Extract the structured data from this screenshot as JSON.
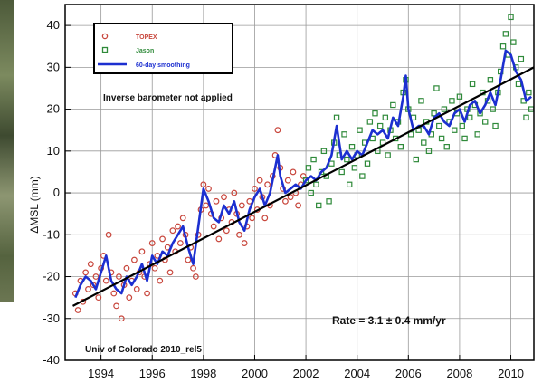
{
  "chart_data": {
    "type": "scatter",
    "title": "",
    "xlabel": "",
    "ylabel": "ΔMSL (mm)",
    "xlim": [
      1992.6,
      2010.9
    ],
    "ylim": [
      -40,
      45
    ],
    "x_ticks": [
      1994,
      1996,
      1998,
      2000,
      2002,
      2004,
      2006,
      2008,
      2010
    ],
    "y_ticks": [
      -40,
      -30,
      -20,
      -10,
      0,
      10,
      20,
      30,
      40
    ],
    "grid": true,
    "legend_position": "top-left",
    "legend": [
      {
        "label": "TOPEX",
        "marker": "circle",
        "color": "#c8463c"
      },
      {
        "label": "Jason",
        "marker": "square",
        "color": "#2f8a3a"
      },
      {
        "label": "60-day smoothing",
        "marker": "line",
        "color": "#1c2fd0"
      }
    ],
    "annotations": {
      "note": "Inverse barometer not applied",
      "rate": "Rate = 3.1 ± 0.4 mm/yr",
      "source": "Univ of Colorado 2010_rel5"
    },
    "trend": {
      "x": [
        1992.9,
        2010.9
      ],
      "y": [
        -27,
        30
      ],
      "color": "#000000"
    },
    "series": [
      {
        "name": "TOPEX",
        "marker": "circle",
        "color": "#c8463c",
        "points": [
          [
            1993.0,
            -24
          ],
          [
            1993.1,
            -28
          ],
          [
            1993.2,
            -21
          ],
          [
            1993.3,
            -26
          ],
          [
            1993.4,
            -19
          ],
          [
            1993.5,
            -23
          ],
          [
            1993.6,
            -17
          ],
          [
            1993.7,
            -22
          ],
          [
            1993.8,
            -20
          ],
          [
            1993.9,
            -25
          ],
          [
            1994.0,
            -18
          ],
          [
            1994.1,
            -15
          ],
          [
            1994.2,
            -21
          ],
          [
            1994.3,
            -10
          ],
          [
            1994.4,
            -19
          ],
          [
            1994.5,
            -24
          ],
          [
            1994.6,
            -27
          ],
          [
            1994.7,
            -20
          ],
          [
            1994.8,
            -30
          ],
          [
            1994.9,
            -22
          ],
          [
            1995.0,
            -18
          ],
          [
            1995.1,
            -25
          ],
          [
            1995.2,
            -21
          ],
          [
            1995.3,
            -16
          ],
          [
            1995.4,
            -23
          ],
          [
            1995.5,
            -19
          ],
          [
            1995.6,
            -14
          ],
          [
            1995.7,
            -20
          ],
          [
            1995.8,
            -24
          ],
          [
            1995.9,
            -17
          ],
          [
            1996.0,
            -12
          ],
          [
            1996.1,
            -18
          ],
          [
            1996.2,
            -15
          ],
          [
            1996.3,
            -21
          ],
          [
            1996.4,
            -11
          ],
          [
            1996.5,
            -16
          ],
          [
            1996.6,
            -13
          ],
          [
            1996.7,
            -19
          ],
          [
            1996.8,
            -9
          ],
          [
            1996.9,
            -14
          ],
          [
            1997.0,
            -8
          ],
          [
            1997.1,
            -12
          ],
          [
            1997.2,
            -6
          ],
          [
            1997.3,
            -10
          ],
          [
            1997.4,
            -16
          ],
          [
            1997.5,
            -13
          ],
          [
            1997.6,
            -18
          ],
          [
            1997.7,
            -20
          ],
          [
            1997.8,
            -10
          ],
          [
            1997.9,
            -4
          ],
          [
            1998.0,
            2
          ],
          [
            1998.1,
            -3
          ],
          [
            1998.2,
            1
          ],
          [
            1998.3,
            -5
          ],
          [
            1998.4,
            -8
          ],
          [
            1998.5,
            -2
          ],
          [
            1998.6,
            -11
          ],
          [
            1998.7,
            -6
          ],
          [
            1998.8,
            -1
          ],
          [
            1998.9,
            -9
          ],
          [
            1999.0,
            -4
          ],
          [
            1999.1,
            -7
          ],
          [
            1999.2,
            0
          ],
          [
            1999.3,
            -5
          ],
          [
            1999.4,
            -10
          ],
          [
            1999.5,
            -3
          ],
          [
            1999.6,
            -12
          ],
          [
            1999.7,
            -8
          ],
          [
            1999.8,
            -2
          ],
          [
            1999.9,
            -6
          ],
          [
            2000.0,
            1
          ],
          [
            2000.1,
            -4
          ],
          [
            2000.2,
            3
          ],
          [
            2000.3,
            -1
          ],
          [
            2000.4,
            -6
          ],
          [
            2000.5,
            2
          ],
          [
            2000.6,
            -3
          ],
          [
            2000.7,
            4
          ],
          [
            2000.8,
            9
          ],
          [
            2000.9,
            15
          ],
          [
            2001.0,
            6
          ],
          [
            2001.1,
            1
          ],
          [
            2001.2,
            -2
          ],
          [
            2001.3,
            3
          ],
          [
            2001.4,
            -1
          ],
          [
            2001.5,
            5
          ],
          [
            2001.6,
            0
          ],
          [
            2001.7,
            -3
          ],
          [
            2001.8,
            2
          ],
          [
            2001.9,
            4
          ]
        ]
      },
      {
        "name": "Jason",
        "marker": "square",
        "color": "#2f8a3a",
        "points": [
          [
            2002.0,
            3
          ],
          [
            2002.1,
            6
          ],
          [
            2002.2,
            0
          ],
          [
            2002.3,
            8
          ],
          [
            2002.4,
            2
          ],
          [
            2002.5,
            -3
          ],
          [
            2002.6,
            5
          ],
          [
            2002.7,
            10
          ],
          [
            2002.8,
            4
          ],
          [
            2002.9,
            -2
          ],
          [
            2003.0,
            7
          ],
          [
            2003.1,
            12
          ],
          [
            2003.2,
            18
          ],
          [
            2003.3,
            9
          ],
          [
            2003.4,
            5
          ],
          [
            2003.5,
            14
          ],
          [
            2003.6,
            8
          ],
          [
            2003.7,
            2
          ],
          [
            2003.8,
            11
          ],
          [
            2003.9,
            6
          ],
          [
            2004.0,
            9
          ],
          [
            2004.1,
            15
          ],
          [
            2004.2,
            4
          ],
          [
            2004.3,
            12
          ],
          [
            2004.4,
            7
          ],
          [
            2004.5,
            17
          ],
          [
            2004.6,
            13
          ],
          [
            2004.7,
            19
          ],
          [
            2004.8,
            10
          ],
          [
            2004.9,
            16
          ],
          [
            2005.0,
            12
          ],
          [
            2005.1,
            18
          ],
          [
            2005.2,
            9
          ],
          [
            2005.3,
            15
          ],
          [
            2005.4,
            21
          ],
          [
            2005.5,
            13
          ],
          [
            2005.6,
            17
          ],
          [
            2005.7,
            11
          ],
          [
            2005.8,
            24
          ],
          [
            2005.9,
            27
          ],
          [
            2006.0,
            20
          ],
          [
            2006.1,
            14
          ],
          [
            2006.2,
            18
          ],
          [
            2006.3,
            8
          ],
          [
            2006.4,
            15
          ],
          [
            2006.5,
            22
          ],
          [
            2006.6,
            12
          ],
          [
            2006.7,
            17
          ],
          [
            2006.8,
            10
          ],
          [
            2006.9,
            14
          ],
          [
            2007.0,
            19
          ],
          [
            2007.1,
            25
          ],
          [
            2007.2,
            16
          ],
          [
            2007.3,
            13
          ],
          [
            2007.4,
            20
          ],
          [
            2007.5,
            11
          ],
          [
            2007.6,
            17
          ],
          [
            2007.7,
            22
          ],
          [
            2007.8,
            15
          ],
          [
            2007.9,
            19
          ],
          [
            2008.0,
            23
          ],
          [
            2008.1,
            16
          ],
          [
            2008.2,
            13
          ],
          [
            2008.3,
            20
          ],
          [
            2008.4,
            18
          ],
          [
            2008.5,
            26
          ],
          [
            2008.6,
            21
          ],
          [
            2008.7,
            14
          ],
          [
            2008.8,
            19
          ],
          [
            2008.9,
            24
          ],
          [
            2009.0,
            17
          ],
          [
            2009.1,
            22
          ],
          [
            2009.2,
            27
          ],
          [
            2009.3,
            20
          ],
          [
            2009.4,
            16
          ],
          [
            2009.5,
            24
          ],
          [
            2009.6,
            29
          ],
          [
            2009.7,
            35
          ],
          [
            2009.8,
            38
          ],
          [
            2009.9,
            33
          ],
          [
            2010.0,
            42
          ],
          [
            2010.1,
            36
          ],
          [
            2010.2,
            30
          ],
          [
            2010.3,
            26
          ],
          [
            2010.4,
            32
          ],
          [
            2010.5,
            22
          ],
          [
            2010.6,
            18
          ],
          [
            2010.7,
            24
          ],
          [
            2010.8,
            20
          ]
        ]
      },
      {
        "name": "60-day smoothing",
        "marker": "line",
        "color": "#1c2fd0",
        "points": [
          [
            1993.0,
            -25
          ],
          [
            1993.2,
            -22
          ],
          [
            1993.4,
            -20
          ],
          [
            1993.6,
            -21
          ],
          [
            1993.8,
            -23
          ],
          [
            1994.0,
            -19
          ],
          [
            1994.2,
            -15
          ],
          [
            1994.4,
            -21
          ],
          [
            1994.6,
            -23
          ],
          [
            1994.8,
            -24
          ],
          [
            1995.0,
            -20
          ],
          [
            1995.2,
            -22
          ],
          [
            1995.4,
            -20
          ],
          [
            1995.6,
            -17
          ],
          [
            1995.8,
            -21
          ],
          [
            1996.0,
            -15
          ],
          [
            1996.2,
            -17
          ],
          [
            1996.4,
            -14
          ],
          [
            1996.6,
            -15
          ],
          [
            1996.8,
            -12
          ],
          [
            1997.0,
            -10
          ],
          [
            1997.2,
            -8
          ],
          [
            1997.4,
            -13
          ],
          [
            1997.6,
            -17
          ],
          [
            1997.8,
            -8
          ],
          [
            1998.0,
            1
          ],
          [
            1998.2,
            -2
          ],
          [
            1998.4,
            -6
          ],
          [
            1998.6,
            -7
          ],
          [
            1998.8,
            -3
          ],
          [
            1999.0,
            -5
          ],
          [
            1999.2,
            -2
          ],
          [
            1999.4,
            -7
          ],
          [
            1999.6,
            -9
          ],
          [
            1999.8,
            -4
          ],
          [
            2000.0,
            -1
          ],
          [
            2000.2,
            1
          ],
          [
            2000.4,
            -3
          ],
          [
            2000.6,
            0
          ],
          [
            2000.8,
            6
          ],
          [
            2000.9,
            9
          ],
          [
            2001.0,
            4
          ],
          [
            2001.2,
            0
          ],
          [
            2001.4,
            1
          ],
          [
            2001.6,
            2
          ],
          [
            2001.8,
            1
          ],
          [
            2002.0,
            3
          ],
          [
            2002.2,
            4
          ],
          [
            2002.4,
            3
          ],
          [
            2002.6,
            5
          ],
          [
            2002.8,
            6
          ],
          [
            2003.0,
            9
          ],
          [
            2003.2,
            16
          ],
          [
            2003.4,
            8
          ],
          [
            2003.6,
            10
          ],
          [
            2003.8,
            8
          ],
          [
            2004.0,
            10
          ],
          [
            2004.2,
            9
          ],
          [
            2004.4,
            12
          ],
          [
            2004.6,
            15
          ],
          [
            2004.8,
            14
          ],
          [
            2005.0,
            15
          ],
          [
            2005.2,
            13
          ],
          [
            2005.4,
            18
          ],
          [
            2005.6,
            16
          ],
          [
            2005.8,
            23
          ],
          [
            2005.9,
            28
          ],
          [
            2006.0,
            20
          ],
          [
            2006.2,
            15
          ],
          [
            2006.4,
            16
          ],
          [
            2006.6,
            16
          ],
          [
            2006.8,
            14
          ],
          [
            2007.0,
            18
          ],
          [
            2007.2,
            19
          ],
          [
            2007.4,
            17
          ],
          [
            2007.6,
            16
          ],
          [
            2007.8,
            19
          ],
          [
            2008.0,
            20
          ],
          [
            2008.2,
            17
          ],
          [
            2008.4,
            21
          ],
          [
            2008.6,
            22
          ],
          [
            2008.8,
            19
          ],
          [
            2009.0,
            21
          ],
          [
            2009.2,
            24
          ],
          [
            2009.4,
            21
          ],
          [
            2009.6,
            27
          ],
          [
            2009.8,
            34
          ],
          [
            2010.0,
            33
          ],
          [
            2010.2,
            29
          ],
          [
            2010.4,
            27
          ],
          [
            2010.6,
            22
          ],
          [
            2010.8,
            23
          ]
        ]
      }
    ]
  }
}
